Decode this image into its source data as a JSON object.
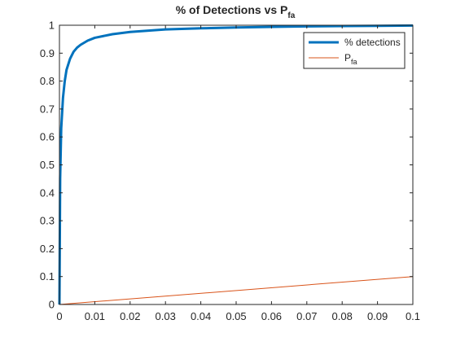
{
  "chart_data": {
    "type": "line",
    "title": "% of Detections vs P",
    "title_subscript": "fa",
    "xlabel": "",
    "ylabel": "",
    "xlim": [
      0,
      0.1
    ],
    "ylim": [
      0,
      1
    ],
    "xticks": [
      "0",
      "0.01",
      "0.02",
      "0.03",
      "0.04",
      "0.05",
      "0.06",
      "0.07",
      "0.08",
      "0.09",
      "0.1"
    ],
    "yticks": [
      "0",
      "0.1",
      "0.2",
      "0.3",
      "0.4",
      "0.5",
      "0.6",
      "0.7",
      "0.8",
      "0.9",
      "1"
    ],
    "grid": false,
    "legend_position": "top-right",
    "series": [
      {
        "name": "% detections",
        "name_subscript": "",
        "color": "#0072BD",
        "line_width": "thick",
        "x": [
          0,
          0.0002,
          0.0005,
          0.001,
          0.0015,
          0.002,
          0.003,
          0.004,
          0.005,
          0.006,
          0.008,
          0.01,
          0.015,
          0.02,
          0.03,
          0.04,
          0.05,
          0.06,
          0.07,
          0.08,
          0.09,
          0.1
        ],
        "y": [
          0,
          0.45,
          0.63,
          0.74,
          0.8,
          0.84,
          0.88,
          0.905,
          0.92,
          0.93,
          0.945,
          0.955,
          0.968,
          0.976,
          0.985,
          0.989,
          0.992,
          0.994,
          0.996,
          0.997,
          0.998,
          0.999
        ]
      },
      {
        "name": "P",
        "name_subscript": "fa",
        "color": "#D95319",
        "line_width": "thin",
        "x": [
          0,
          0.1
        ],
        "y": [
          0,
          0.1
        ]
      }
    ]
  }
}
